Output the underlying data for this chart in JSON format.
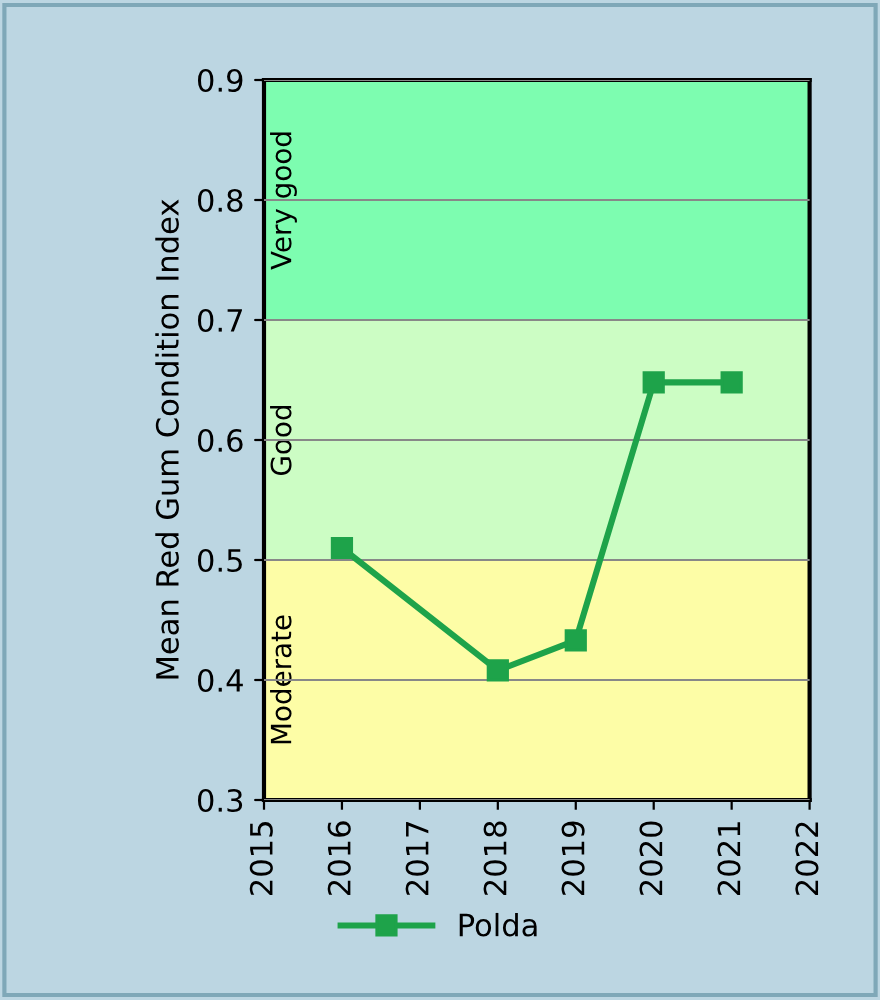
{
  "chart_data": {
    "type": "line",
    "ylabel": "Mean Red Gum Condition Index",
    "x": [
      2016,
      2018,
      2019,
      2020,
      2021
    ],
    "series": [
      {
        "name": "Polda",
        "color": "#1ea34a",
        "values": [
          0.51,
          0.408,
          0.433,
          0.648,
          0.648
        ]
      }
    ],
    "xlim": [
      2015,
      2022
    ],
    "xticks": [
      2015,
      2016,
      2017,
      2018,
      2019,
      2020,
      2021,
      2022
    ],
    "ylim": [
      0.3,
      0.9
    ],
    "yticks": [
      0.3,
      0.4,
      0.5,
      0.6,
      0.7,
      0.8,
      0.9
    ],
    "bands": [
      {
        "axis": "y",
        "from": 0.3,
        "to": 0.5,
        "label": "Moderate",
        "color": "#fdfda6"
      },
      {
        "axis": "y",
        "from": 0.5,
        "to": 0.7,
        "label": "Good",
        "color": "#ccfdc4"
      },
      {
        "axis": "y",
        "from": 0.7,
        "to": 0.9,
        "label": "Very good",
        "color": "#7dfdb0"
      }
    ],
    "grid": "y",
    "legend": "bottom",
    "marker": "square",
    "line_style": "solid"
  }
}
